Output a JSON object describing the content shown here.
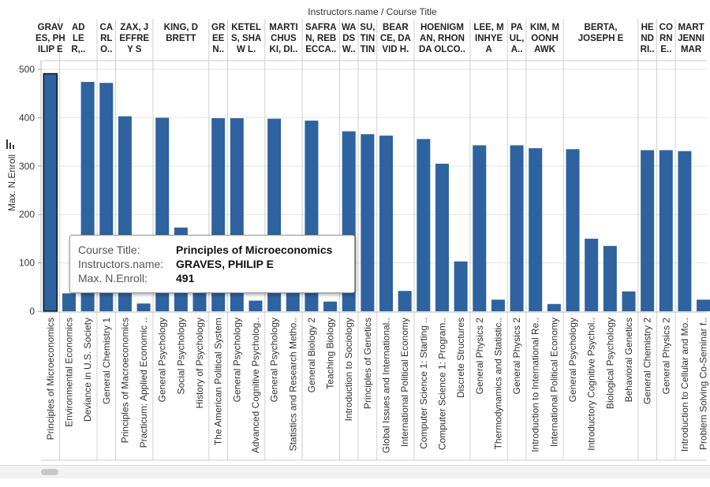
{
  "colors": {
    "bar": "#2e63a0",
    "bar_selected": "#2e63a0",
    "grid": "#e6e6e6",
    "divider": "#d0d0d0",
    "text": "#333333"
  },
  "chart_data": {
    "type": "bar",
    "column_header": "Instructors.name  /  Course Title",
    "ylabel": "Max. N.Enroll",
    "ylim": [
      0,
      500
    ],
    "yticks": [
      0,
      100,
      200,
      300,
      400,
      500
    ],
    "instructors": [
      {
        "label": [
          "GRAV",
          "ES, PH",
          "ILIP E"
        ],
        "start": 0,
        "count": 1
      },
      {
        "label": [
          "AD",
          "LE",
          "R,.."
        ],
        "start": 1,
        "count": 2
      },
      {
        "label": [
          "CA",
          "RL",
          "O.."
        ],
        "start": 3,
        "count": 1
      },
      {
        "label": [
          "ZAX, J",
          "EFFRE",
          "Y S"
        ],
        "start": 4,
        "count": 2
      },
      {
        "label": [
          "KING, D",
          "BRETT"
        ],
        "start": 6,
        "count": 3
      },
      {
        "label": [
          "GR",
          "EE",
          "N.."
        ],
        "start": 9,
        "count": 1
      },
      {
        "label": [
          "KETEL",
          "S, SHA",
          "W L."
        ],
        "start": 10,
        "count": 2
      },
      {
        "label": [
          "MARTI",
          "CHUS",
          "KI, DI.."
        ],
        "start": 12,
        "count": 2
      },
      {
        "label": [
          "SAFRA",
          "N, REB",
          "ECCA.."
        ],
        "start": 14,
        "count": 2
      },
      {
        "label": [
          "WA",
          "DS",
          "W.."
        ],
        "start": 16,
        "count": 1
      },
      {
        "label": [
          "SU,",
          "TIN",
          "TIN"
        ],
        "start": 17,
        "count": 1
      },
      {
        "label": [
          "BEAR",
          "CE, DA",
          "VID H."
        ],
        "start": 18,
        "count": 2
      },
      {
        "label": [
          "HOENIGM",
          "AN, RHON",
          "DA OLCO.."
        ],
        "start": 20,
        "count": 3
      },
      {
        "label": [
          "LEE, M",
          "INHYE",
          "A"
        ],
        "start": 23,
        "count": 2
      },
      {
        "label": [
          "PA",
          "UL,",
          "A.."
        ],
        "start": 25,
        "count": 1
      },
      {
        "label": [
          "KIM, M",
          "OONH",
          "AWK"
        ],
        "start": 26,
        "count": 2
      },
      {
        "label": [
          "BERTA,",
          "JOSEPH E"
        ],
        "start": 28,
        "count": 4
      },
      {
        "label": [
          "HE",
          "ND",
          "RI.."
        ],
        "start": 32,
        "count": 1
      },
      {
        "label": [
          "CO",
          "RN",
          "E.."
        ],
        "start": 33,
        "count": 1
      },
      {
        "label": [
          "MART",
          "JENNI",
          "MAR"
        ],
        "start": 34,
        "count": 2
      }
    ],
    "categories": [
      "Principles of Microeconomics",
      "Environmental Economics",
      "Deviance in U.S. Society",
      "General Chemistry 1",
      "Principles of Macroeconomics",
      "Practicum: Applied Economic ..",
      "General Psychology",
      "Social Psychology",
      "History of Psychology",
      "The American Political System",
      "General Psychology",
      "Advanced Cognitive Psycholog..",
      "General Psychology",
      "Statistics and Research Metho..",
      "General Biology 2",
      "Teaching Biology",
      "Introduction to Sociology",
      "Principles of Genetics",
      "Global Issues and International..",
      "International Political Economy",
      "Computer Science 1: Starting ..",
      "Computer Science 1: Program..",
      "Discrete Structures",
      "General Physics 2",
      "Thermodynamics and Statistic..",
      "General Physics 2",
      "Introduction to International Re..",
      "International Political Economy",
      "General Psychology",
      "Introductory Cognitive Psychol..",
      "Biological Psychology",
      "Behavioral Genetics",
      "General Chemistry 2",
      "General Physics 2",
      "Introduction to Cellular and Mo..",
      "Problem Solving Co-Seminar f.."
    ],
    "values": [
      491,
      37,
      474,
      472,
      403,
      16,
      400,
      173,
      137,
      399,
      399,
      22,
      398,
      137,
      394,
      20,
      372,
      366,
      363,
      42,
      356,
      305,
      103,
      343,
      24,
      343,
      337,
      15,
      335,
      150,
      135,
      41,
      333,
      333,
      331,
      24
    ],
    "selected_index": 0
  },
  "tooltip": {
    "rows": [
      {
        "key": "Course Title:",
        "value": "Principles of Microeconomics"
      },
      {
        "key": "Instructors.name:",
        "value": "GRAVES, PHILIP E"
      },
      {
        "key": "Max. N.Enroll:",
        "value": "491"
      }
    ]
  }
}
